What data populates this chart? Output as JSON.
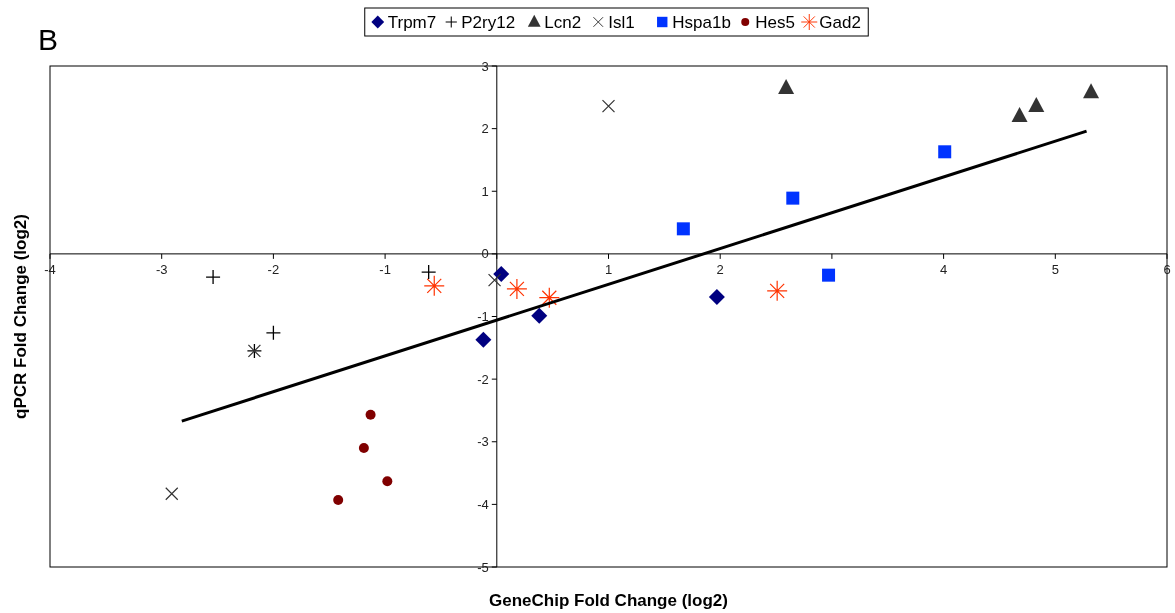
{
  "chart_data": {
    "type": "scatter",
    "title": "B",
    "xlabel": "GeneChip Fold Change (log2)",
    "ylabel": "qPCR Fold Change (log2)",
    "xlim": [
      -4,
      6
    ],
    "ylim": [
      -5,
      3
    ],
    "xticks": [
      -4,
      -3,
      -2,
      -1,
      {
        "value": 0,
        "label": null
      },
      1,
      2,
      {
        "value": 3,
        "label": null
      },
      4,
      5,
      6
    ],
    "yticks": [
      -5,
      -4,
      -3,
      -2,
      -1,
      0,
      1,
      2,
      3
    ],
    "grid": false,
    "legend": "top",
    "series": [
      {
        "name": "Trpm7",
        "color": "#000080",
        "marker": "diamond",
        "x": [
          0.04,
          -0.12,
          0.38,
          1.97
        ],
        "values": [
          -0.32,
          -1.37,
          -0.99,
          -0.69
        ]
      },
      {
        "name": "P2ry12",
        "color": "#000000",
        "marker": "plus",
        "x": [
          -2.54,
          -0.61,
          -2.0,
          -2.17
        ],
        "values": [
          -0.37,
          -0.29,
          -1.26,
          -1.55
        ]
      },
      {
        "name": "Lcn2",
        "color": "#333333",
        "marker": "triangle",
        "x": [
          2.59,
          4.68,
          4.83,
          5.32
        ],
        "values": [
          2.65,
          2.2,
          2.36,
          2.58
        ]
      },
      {
        "name": "Isl1",
        "color": "#333333",
        "marker": "cross",
        "x": [
          1.0,
          -0.02,
          -2.91,
          -2.17
        ],
        "values": [
          2.36,
          -0.42,
          -3.83,
          -1.55
        ]
      },
      {
        "name": "Hspa1b",
        "color": "#0033ff",
        "marker": "square",
        "x": [
          1.67,
          2.65,
          4.01,
          2.97
        ],
        "values": [
          0.4,
          0.89,
          1.63,
          -0.34
        ]
      },
      {
        "name": "Hes5",
        "color": "#800000",
        "marker": "circle",
        "x": [
          -1.13,
          -1.19,
          -0.98,
          -1.42
        ],
        "values": [
          -2.57,
          -3.1,
          -3.63,
          -3.93
        ]
      },
      {
        "name": "Gad2",
        "color": "#ff3300",
        "x": [
          -0.56,
          0.18,
          0.47,
          2.51
        ],
        "values": [
          -0.51,
          -0.56,
          -0.7,
          -0.59
        ]
      },
      {
        "type": "line",
        "color": "#000000",
        "marker": "none",
        "line_style": "solid",
        "x": [
          -2.82,
          5.28
        ],
        "values": [
          -2.67,
          1.96
        ]
      }
    ]
  }
}
